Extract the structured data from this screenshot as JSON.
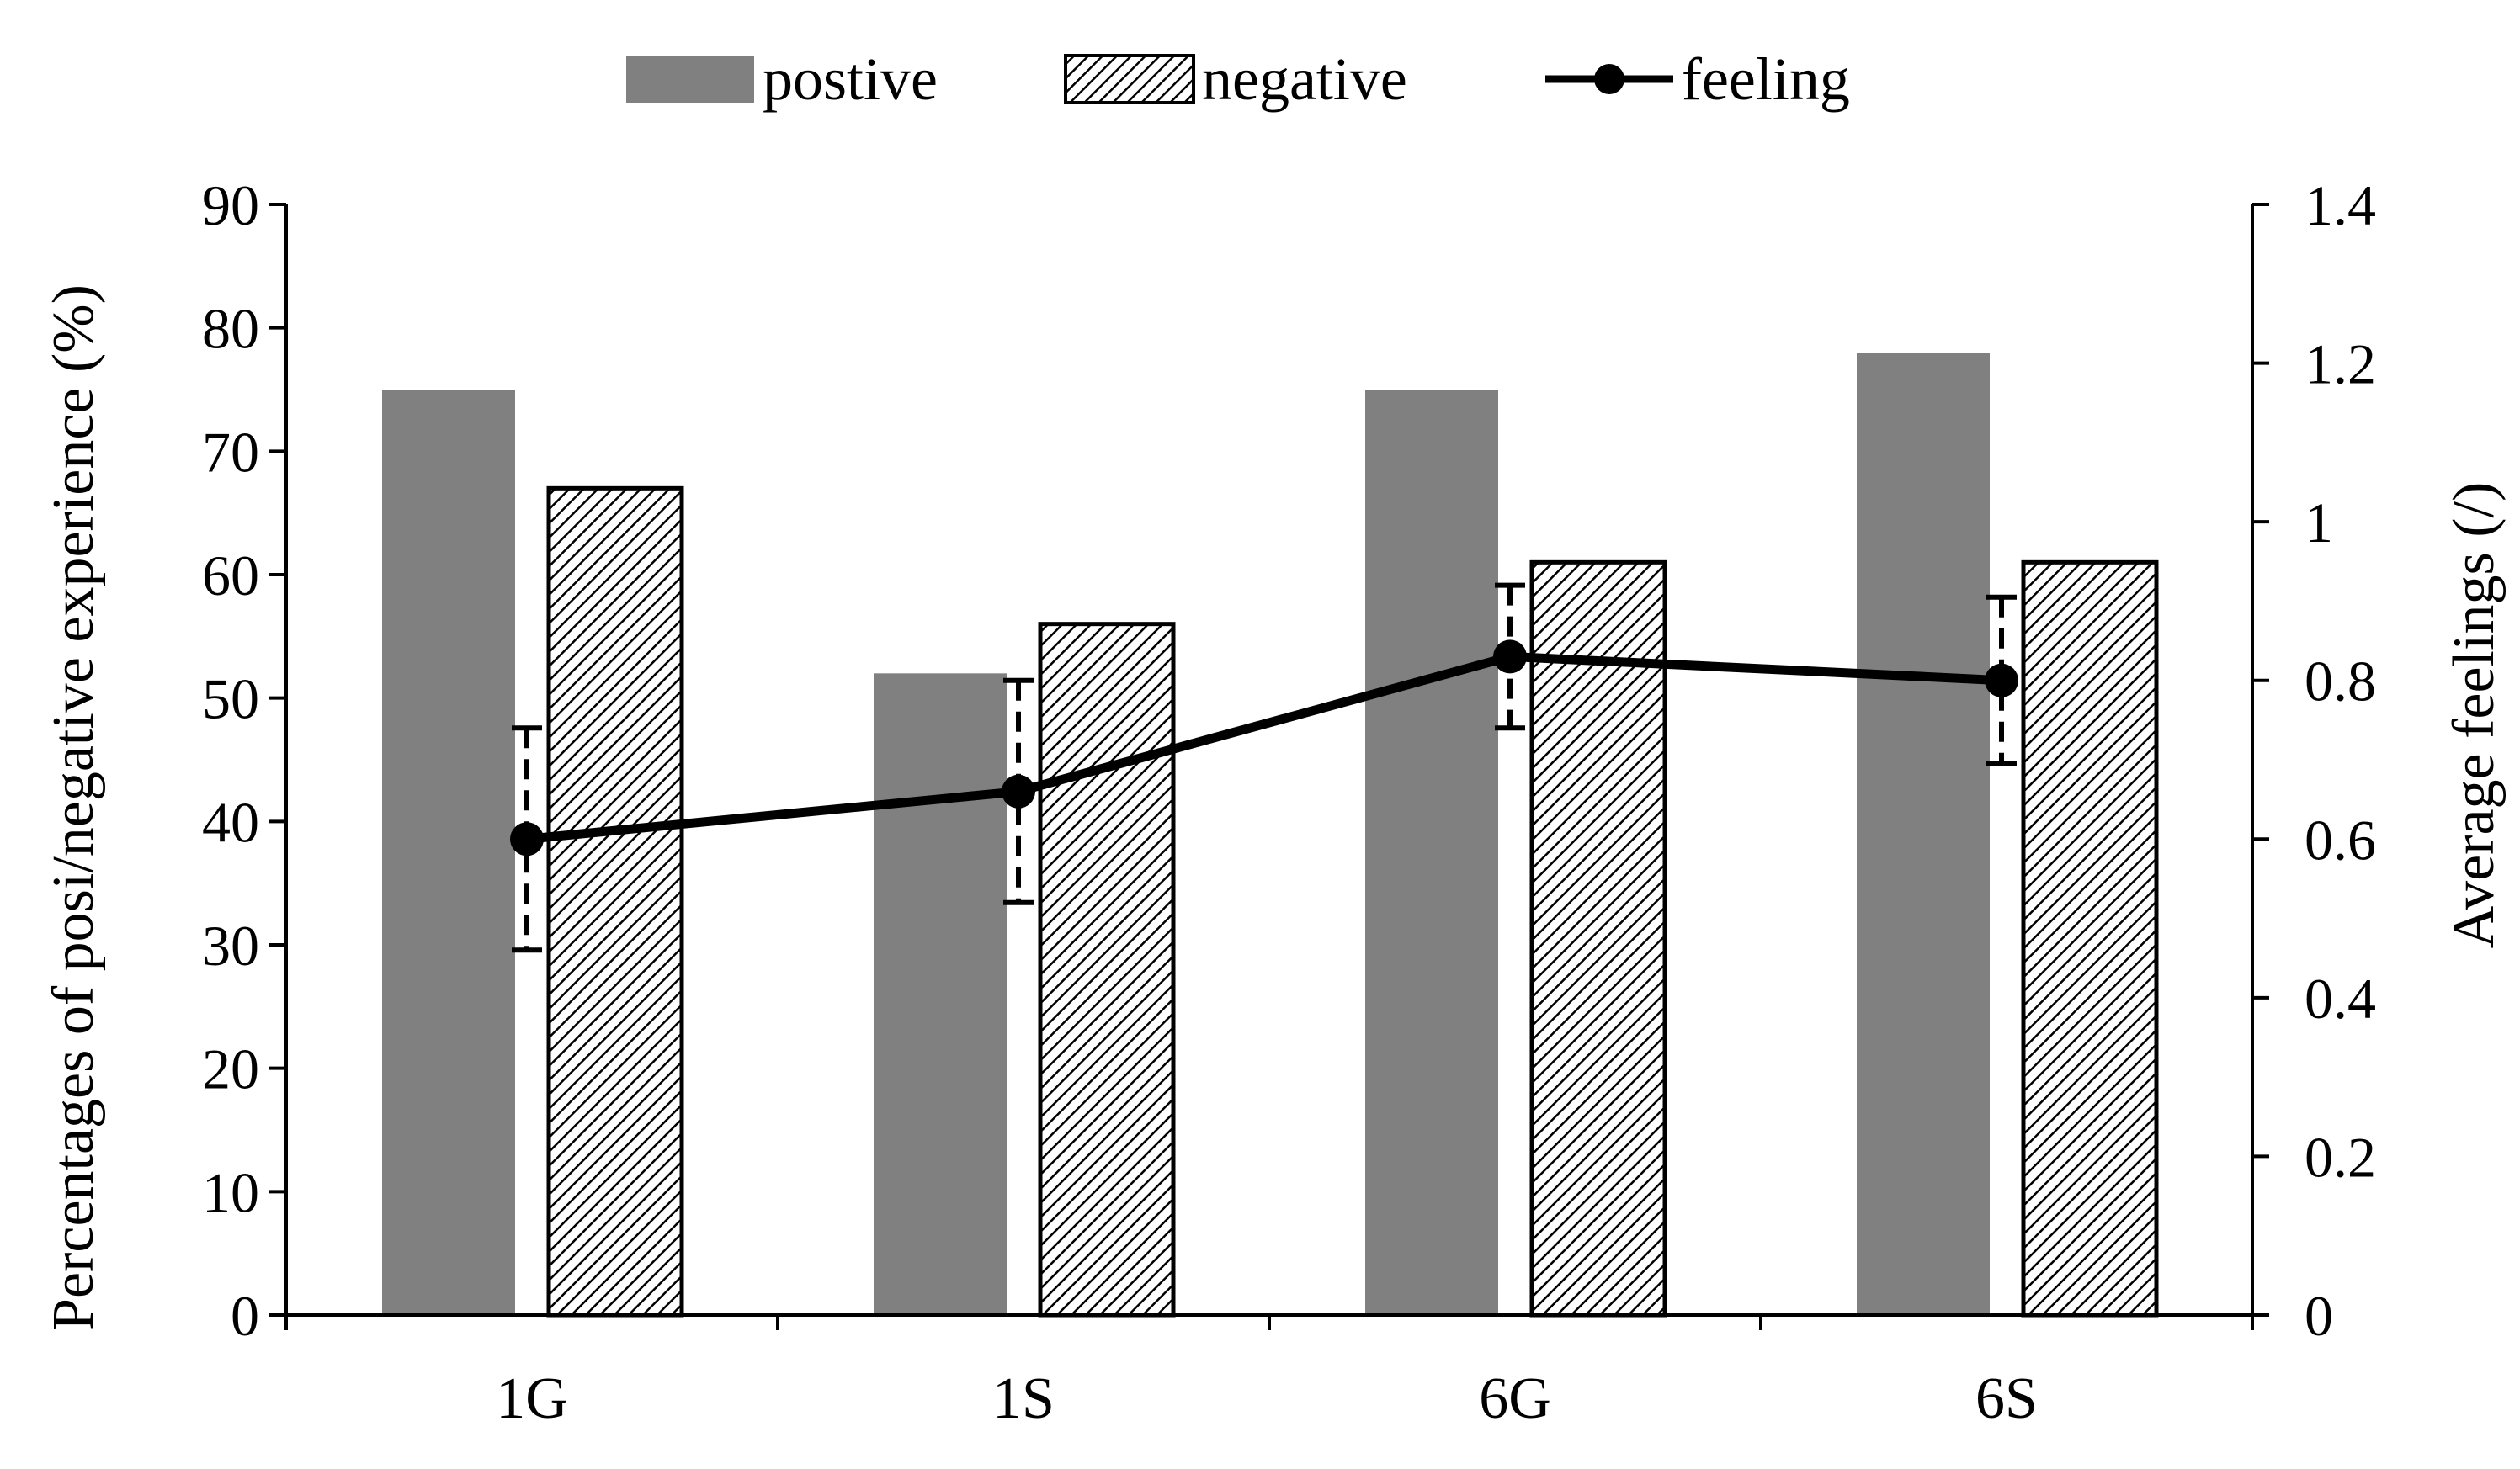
{
  "chart_data": {
    "type": "bar",
    "title": "",
    "categories": [
      "1G",
      "1S",
      "6G",
      "6S"
    ],
    "series": [
      {
        "name": "postive",
        "kind": "bar",
        "axis": "left",
        "color": "#808080",
        "values": [
          75,
          52,
          75,
          78
        ]
      },
      {
        "name": "negative",
        "kind": "bar",
        "axis": "left",
        "pattern": "hatched",
        "values": [
          67,
          56,
          61,
          61
        ]
      },
      {
        "name": "feeling",
        "kind": "line",
        "axis": "right",
        "color": "#000000",
        "values": [
          0.6,
          0.66,
          0.83,
          0.8
        ],
        "error": [
          0.14,
          0.14,
          0.09,
          0.105
        ]
      }
    ],
    "xlabel": "",
    "ylabel_left": "Percentages of posi/negative experience (%)",
    "ylabel_right": "Average  feelings (/)",
    "ylim_left": [
      0,
      90
    ],
    "ylim_right": [
      0,
      1.4
    ],
    "yticks_left": [
      "0",
      "10",
      "20",
      "30",
      "40",
      "50",
      "60",
      "70",
      "80",
      "90"
    ],
    "yticks_right": [
      "0",
      "0.2",
      "0.4",
      "0.6",
      "0.8",
      "1",
      "1.2",
      "1.4"
    ],
    "legend": {
      "position": "top",
      "labels": [
        "postive",
        "negative",
        "feeling"
      ]
    },
    "grid": false
  }
}
